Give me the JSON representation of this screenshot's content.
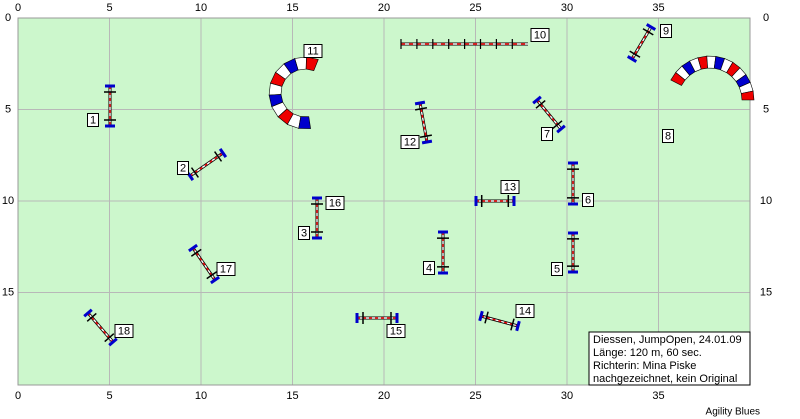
{
  "course": {
    "x_ticks": [
      0,
      5,
      10,
      15,
      20,
      25,
      30,
      35
    ],
    "y_ticks": [
      0,
      5,
      10,
      15
    ],
    "obstacles": [
      "1",
      "2",
      "3",
      "4",
      "5",
      "6",
      "7",
      "8",
      "9",
      "10",
      "11",
      "12",
      "13",
      "14",
      "15",
      "16",
      "17",
      "18"
    ],
    "info": [
      "Diessen, JumpOpen, 24.01.09",
      "Länge: 120 m, 60 sec.",
      "Richterin: Mina Piske",
      "nachgezeichnet, kein Original"
    ],
    "footer": "Agility Blues"
  }
}
